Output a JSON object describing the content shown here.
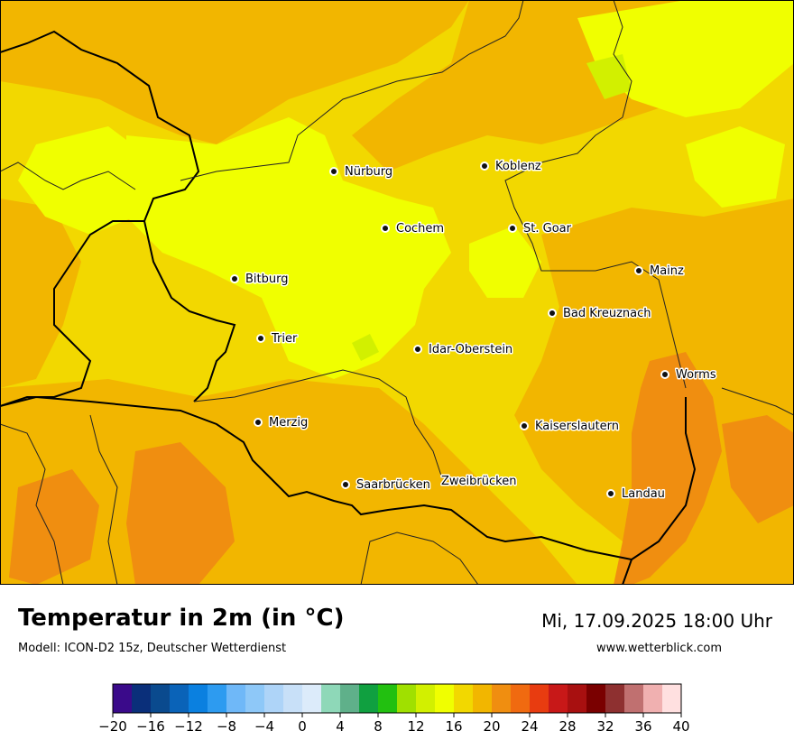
{
  "title": "Temperatur in 2m (in °C)",
  "model": "Modell: ICON-D2 15z, Deutscher Wetterdienst",
  "valid_time": "Mi, 17.09.2025 18:00 Uhr",
  "website": "www.wetterblick.com",
  "cities": [
    {
      "name": "Nürburg"
    },
    {
      "name": "Koblenz"
    },
    {
      "name": "Cochem"
    },
    {
      "name": "St. Goar"
    },
    {
      "name": "Mainz"
    },
    {
      "name": "Bitburg"
    },
    {
      "name": "Bad Kreuznach"
    },
    {
      "name": "Trier"
    },
    {
      "name": "Idar-Oberstein"
    },
    {
      "name": "Worms"
    },
    {
      "name": "Merzig"
    },
    {
      "name": "Kaiserslautern"
    },
    {
      "name": "Saarbrücken"
    },
    {
      "name": "Zweibrücken"
    },
    {
      "name": "Landau"
    }
  ],
  "legend": {
    "unit": "°C",
    "min": -20,
    "max": 40,
    "step": 2,
    "tick_labels": [
      "−20",
      "−16",
      "−12",
      "−8",
      "−4",
      "0",
      "4",
      "8",
      "12",
      "16",
      "20",
      "24",
      "28",
      "32",
      "36",
      "40"
    ],
    "colors": [
      "#3a0a8a",
      "#0a2f7a",
      "#0a4a8e",
      "#0a63b8",
      "#0a80e0",
      "#2d9bf0",
      "#6fb8f8",
      "#8ec8f8",
      "#aed4f8",
      "#c8e0f8",
      "#dcebfa",
      "#8ed8b8",
      "#5fb08a",
      "#10a040",
      "#22c010",
      "#a0e000",
      "#d2f000",
      "#f0ff00",
      "#f2d800",
      "#f2b600",
      "#f08e10",
      "#f06a10",
      "#e83c10",
      "#c81818",
      "#a81010",
      "#7a0000",
      "#8e3030",
      "#c07070",
      "#f0b0b0",
      "#ffe0e0"
    ]
  },
  "map_colors": {
    "warm_yellow": "#f2d800",
    "bright_yellow": "#f0ff00",
    "orange_yellow": "#f2b600",
    "orange": "#f08e10",
    "lime": "#d2f000"
  }
}
